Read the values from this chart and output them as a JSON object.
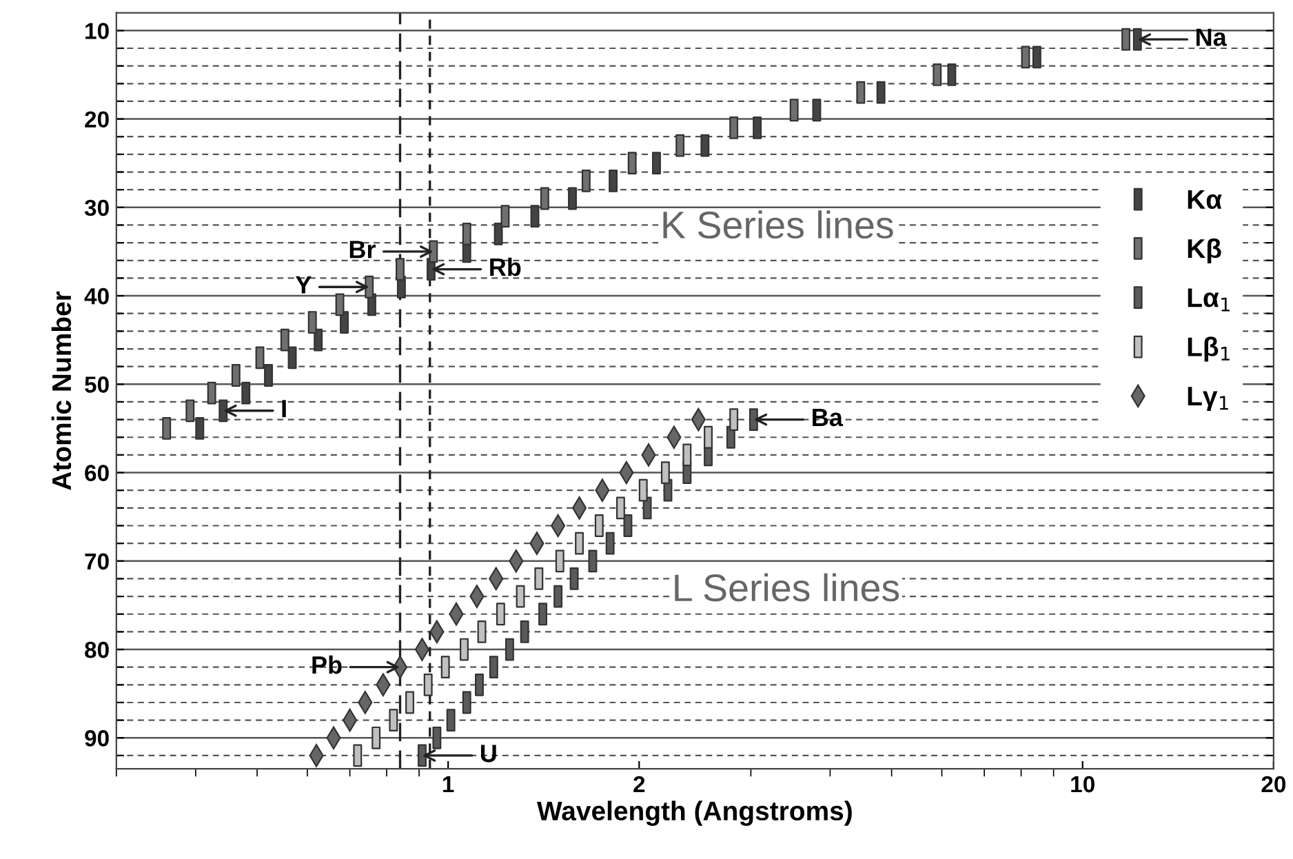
{
  "chart_data": {
    "type": "scatter",
    "xlabel": "Wavelength (Angstroms)",
    "ylabel": "Atomic Number",
    "log": "x",
    "xlim": [
      0.3,
      20
    ],
    "xticks": [
      1,
      2,
      10,
      20
    ],
    "ylim": [
      93.5,
      8
    ],
    "yticks": [
      10,
      {
        "value": 12,
        "label": null
      },
      {
        "value": 14,
        "label": null
      },
      {
        "value": 16,
        "label": null
      },
      {
        "value": 18,
        "label": null
      },
      20,
      {
        "value": 22,
        "label": null
      },
      {
        "value": 24,
        "label": null
      },
      {
        "value": 26,
        "label": null
      },
      {
        "value": 28,
        "label": null
      },
      30,
      {
        "value": 32,
        "label": null
      },
      {
        "value": 34,
        "label": null
      },
      {
        "value": 36,
        "label": null
      },
      {
        "value": 38,
        "label": null
      },
      40,
      {
        "value": 42,
        "label": null
      },
      {
        "value": 44,
        "label": null
      },
      {
        "value": 46,
        "label": null
      },
      {
        "value": 48,
        "label": null
      },
      50,
      {
        "value": 52,
        "label": null
      },
      {
        "value": 54,
        "label": null
      },
      {
        "value": 56,
        "label": null
      },
      {
        "value": 58,
        "label": null
      },
      60,
      {
        "value": 62,
        "label": null
      },
      {
        "value": 64,
        "label": null
      },
      {
        "value": 66,
        "label": null
      },
      {
        "value": 68,
        "label": null
      },
      70,
      {
        "value": 72,
        "label": null
      },
      {
        "value": 74,
        "label": null
      },
      {
        "value": 76,
        "label": null
      },
      {
        "value": 78,
        "label": null
      },
      80,
      {
        "value": 82,
        "label": null
      },
      {
        "value": 84,
        "label": null
      },
      {
        "value": 86,
        "label": null
      },
      {
        "value": 88,
        "label": null
      },
      90,
      {
        "value": 92,
        "label": null
      }
    ],
    "grid": "y",
    "legend": "right",
    "series": [
      {
        "name": "Kα",
        "color": "#444444",
        "marker": "square",
        "x": [
          0.406,
          0.442,
          0.48,
          0.521,
          0.568,
          0.624,
          0.686,
          0.758,
          0.844,
          0.94,
          1.07,
          1.2,
          1.37,
          1.57,
          1.82,
          2.13,
          2.54,
          3.07,
          3.81,
          4.81,
          6.22,
          8.47,
          12.2
        ],
        "values": [
          55,
          53,
          51,
          49,
          47,
          45,
          43,
          41,
          39,
          37,
          35,
          33,
          31,
          29,
          27,
          25,
          23,
          21,
          19,
          17,
          15,
          13,
          11
        ]
      },
      {
        "name": "Kβ",
        "color": "#707070",
        "marker": "square",
        "x": [
          0.36,
          0.392,
          0.424,
          0.463,
          0.505,
          0.553,
          0.611,
          0.675,
          0.751,
          0.84,
          0.948,
          1.07,
          1.23,
          1.42,
          1.65,
          1.95,
          2.32,
          2.82,
          3.51,
          4.47,
          5.9,
          8.13,
          11.7
        ],
        "values": [
          55,
          53,
          51,
          49,
          47,
          45,
          43,
          41,
          39,
          37,
          35,
          33,
          31,
          29,
          27,
          25,
          23,
          21,
          19,
          17,
          15,
          13,
          11
        ]
      },
      {
        "name": "Lα$_{1}$",
        "color": "#5a5a5a",
        "marker": "square",
        "x": [
          0.91,
          0.96,
          1.01,
          1.07,
          1.12,
          1.18,
          1.25,
          1.32,
          1.41,
          1.49,
          1.58,
          1.69,
          1.8,
          1.92,
          2.06,
          2.22,
          2.38,
          2.57,
          2.79,
          3.03
        ],
        "values": [
          92,
          90,
          88,
          86,
          84,
          82,
          80,
          78,
          76,
          74,
          72,
          70,
          68,
          66,
          64,
          62,
          60,
          58,
          56,
          54
        ]
      },
      {
        "name": "Lβ$_{1}$",
        "color": "#c0c0c0",
        "marker": "square",
        "x": [
          0.72,
          0.77,
          0.82,
          0.87,
          0.93,
          0.99,
          1.06,
          1.13,
          1.21,
          1.3,
          1.39,
          1.5,
          1.61,
          1.73,
          1.87,
          2.03,
          2.2,
          2.38,
          2.57,
          2.82
        ],
        "values": [
          92,
          90,
          88,
          86,
          84,
          82,
          80,
          78,
          76,
          74,
          72,
          70,
          68,
          66,
          64,
          62,
          60,
          58,
          56,
          54
        ]
      },
      {
        "name": "Lγ$_{1}$",
        "color": "#666666",
        "marker": "diamond",
        "x": [
          0.62,
          0.66,
          0.7,
          0.74,
          0.79,
          0.84,
          0.91,
          0.96,
          1.03,
          1.11,
          1.19,
          1.28,
          1.38,
          1.49,
          1.61,
          1.75,
          1.91,
          2.07,
          2.27,
          2.48
        ],
        "values": [
          92,
          90,
          88,
          86,
          84,
          82,
          80,
          78,
          76,
          74,
          72,
          70,
          68,
          66,
          64,
          62,
          60,
          58,
          56,
          54
        ]
      }
    ],
    "ref_lines": [
      {
        "axis": "x",
        "value": 0.84,
        "color": "#222222",
        "line_style": "dashed"
      },
      {
        "axis": "x",
        "value": 0.936,
        "color": "#222222",
        "line_style": "dotted"
      }
    ],
    "annotations": [
      {
        "text": "Na",
        "x": 12.2,
        "y": 11
      },
      {
        "text": "Br",
        "x": 0.948,
        "y": 35
      },
      {
        "text": "Rb",
        "x": 0.94,
        "y": 37
      },
      {
        "text": "Y",
        "x": 0.751,
        "y": 39
      },
      {
        "text": "I",
        "x": 0.442,
        "y": 53
      },
      {
        "text": "Pb",
        "x": 0.84,
        "y": 82
      },
      {
        "text": "Ba",
        "x": 3.03,
        "y": 54
      },
      {
        "text": "U",
        "x": 0.91,
        "y": 92
      },
      "K Series lines",
      "L Series lines"
    ]
  }
}
